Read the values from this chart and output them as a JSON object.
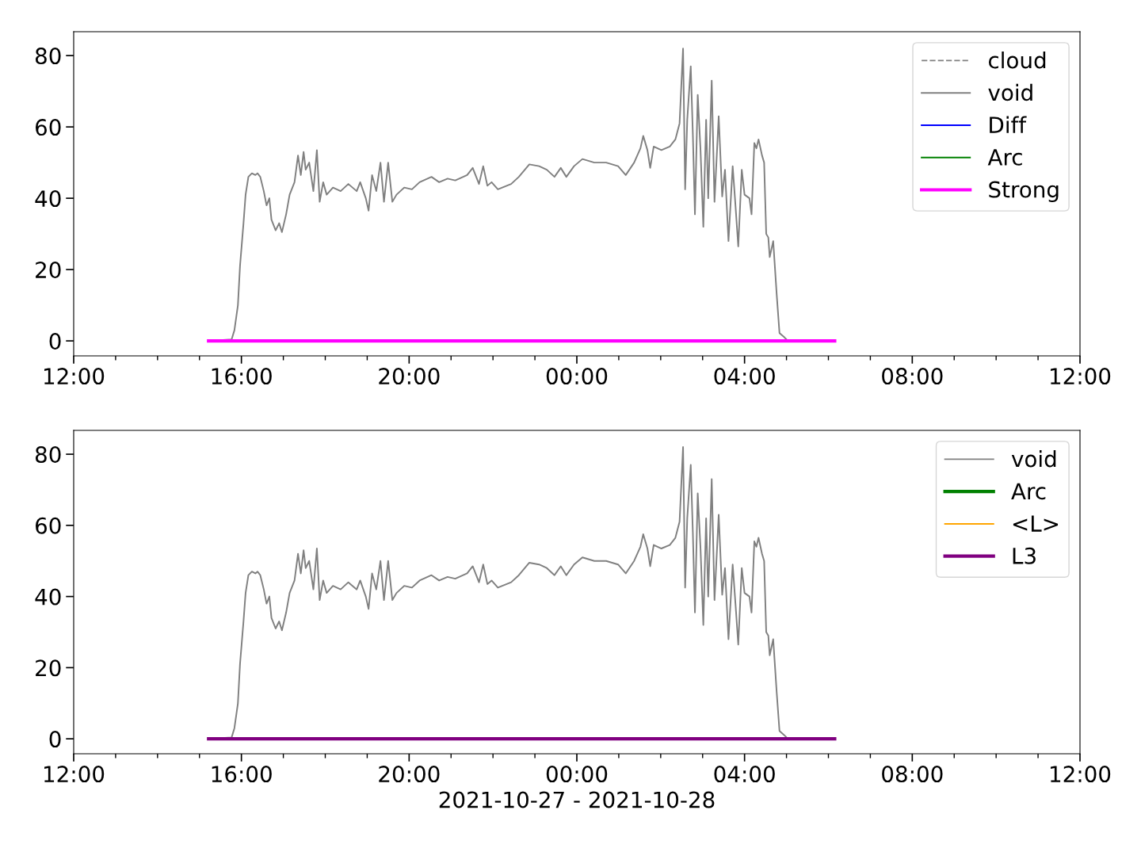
{
  "chart_data": [
    {
      "type": "line",
      "xlim": [
        "2021-10-27T12:00",
        "2021-10-28T12:00"
      ],
      "ylim": [
        -4.2,
        86.7
      ],
      "yticks": [
        0,
        20,
        40,
        60,
        80
      ],
      "xticks": [
        {
          "value": "2021-10-27T12:00",
          "label": "12:00"
        },
        {
          "value": "2021-10-27T13:00",
          "label": null
        },
        {
          "value": "2021-10-27T14:00",
          "label": null
        },
        {
          "value": "2021-10-27T15:00",
          "label": null
        },
        {
          "value": "2021-10-27T16:00",
          "label": "16:00"
        },
        {
          "value": "2021-10-27T17:00",
          "label": null
        },
        {
          "value": "2021-10-27T18:00",
          "label": null
        },
        {
          "value": "2021-10-27T19:00",
          "label": null
        },
        {
          "value": "2021-10-27T20:00",
          "label": "20:00"
        },
        {
          "value": "2021-10-27T21:00",
          "label": null
        },
        {
          "value": "2021-10-27T22:00",
          "label": null
        },
        {
          "value": "2021-10-27T23:00",
          "label": null
        },
        {
          "value": "2021-10-28T00:00",
          "label": "00:00"
        },
        {
          "value": "2021-10-28T01:00",
          "label": null
        },
        {
          "value": "2021-10-28T02:00",
          "label": null
        },
        {
          "value": "2021-10-28T03:00",
          "label": null
        },
        {
          "value": "2021-10-28T04:00",
          "label": "04:00"
        },
        {
          "value": "2021-10-28T05:00",
          "label": null
        },
        {
          "value": "2021-10-28T06:00",
          "label": null
        },
        {
          "value": "2021-10-28T07:00",
          "label": null
        },
        {
          "value": "2021-10-28T08:00",
          "label": "08:00"
        },
        {
          "value": "2021-10-28T09:00",
          "label": null
        },
        {
          "value": "2021-10-28T10:00",
          "label": null
        },
        {
          "value": "2021-10-28T11:00",
          "label": null
        },
        {
          "value": "2021-10-28T12:00",
          "label": "12:00"
        }
      ],
      "grid": false,
      "legend": "top right",
      "series": [
        {
          "name": "cloud",
          "color": "#808080",
          "line_style": "dashed"
        },
        {
          "name": "void",
          "color": "#808080",
          "line_style": "solid",
          "x": [
            "2021-10-27T15:13",
            "2021-10-27T15:46",
            "2021-10-27T15:50",
            "2021-10-27T15:55",
            "2021-10-27T15:58",
            "2021-10-27T16:03",
            "2021-10-27T16:06",
            "2021-10-27T16:10",
            "2021-10-27T16:15",
            "2021-10-27T16:20",
            "2021-10-27T16:23",
            "2021-10-27T16:27",
            "2021-10-27T16:32",
            "2021-10-27T16:36",
            "2021-10-27T16:40",
            "2021-10-27T16:43",
            "2021-10-27T16:49",
            "2021-10-27T16:54",
            "2021-10-27T16:58",
            "2021-10-27T17:04",
            "2021-10-27T17:09",
            "2021-10-27T17:16",
            "2021-10-27T17:21",
            "2021-10-27T17:25",
            "2021-10-27T17:29",
            "2021-10-27T17:32",
            "2021-10-27T17:37",
            "2021-10-27T17:43",
            "2021-10-27T17:48",
            "2021-10-27T17:52",
            "2021-10-27T17:57",
            "2021-10-27T18:02",
            "2021-10-27T18:11",
            "2021-10-27T18:22",
            "2021-10-27T18:33",
            "2021-10-27T18:45",
            "2021-10-27T18:50",
            "2021-10-27T18:58",
            "2021-10-27T19:02",
            "2021-10-27T19:07",
            "2021-10-27T19:13",
            "2021-10-27T19:19",
            "2021-10-27T19:24",
            "2021-10-27T19:30",
            "2021-10-27T19:36",
            "2021-10-27T19:42",
            "2021-10-27T19:53",
            "2021-10-27T20:04",
            "2021-10-27T20:15",
            "2021-10-27T20:32",
            "2021-10-27T20:43",
            "2021-10-27T20:55",
            "2021-10-27T21:06",
            "2021-10-27T21:23",
            "2021-10-27T21:31",
            "2021-10-27T21:40",
            "2021-10-27T21:46",
            "2021-10-27T21:52",
            "2021-10-27T21:58",
            "2021-10-27T22:07",
            "2021-10-27T22:26",
            "2021-10-27T22:37",
            "2021-10-27T22:52",
            "2021-10-27T23:06",
            "2021-10-27T23:17",
            "2021-10-27T23:28",
            "2021-10-27T23:37",
            "2021-10-27T23:45",
            "2021-10-27T23:56",
            "2021-10-28T00:08",
            "2021-10-28T00:25",
            "2021-10-28T00:42",
            "2021-10-28T00:59",
            "2021-10-28T01:10",
            "2021-10-28T01:22",
            "2021-10-28T01:31",
            "2021-10-28T01:35",
            "2021-10-28T01:41",
            "2021-10-28T01:45",
            "2021-10-28T01:50",
            "2021-10-28T02:01",
            "2021-10-28T02:13",
            "2021-10-28T02:21",
            "2021-10-28T02:27",
            "2021-10-28T02:32",
            "2021-10-28T02:35",
            "2021-10-28T02:38",
            "2021-10-28T02:43",
            "2021-10-28T02:46",
            "2021-10-28T02:49",
            "2021-10-28T02:53",
            "2021-10-28T02:57",
            "2021-10-28T03:01",
            "2021-10-28T03:05",
            "2021-10-28T03:08",
            "2021-10-28T03:13",
            "2021-10-28T03:17",
            "2021-10-28T03:23",
            "2021-10-28T03:28",
            "2021-10-28T03:32",
            "2021-10-28T03:37",
            "2021-10-28T03:43",
            "2021-10-28T03:47",
            "2021-10-28T03:51",
            "2021-10-28T03:56",
            "2021-10-28T04:00",
            "2021-10-28T04:07",
            "2021-10-28T04:10",
            "2021-10-28T04:14",
            "2021-10-28T04:17",
            "2021-10-28T04:20",
            "2021-10-28T04:25",
            "2021-10-28T04:28",
            "2021-10-28T04:31",
            "2021-10-28T04:34",
            "2021-10-28T04:36",
            "2021-10-28T04:41",
            "2021-10-28T04:43",
            "2021-10-28T04:46",
            "2021-10-28T04:50",
            "2021-10-28T04:57",
            "2021-10-28T05:02"
          ],
          "values": [
            0,
            0.4,
            3,
            10,
            21,
            33,
            41,
            46,
            47,
            46.5,
            47,
            46,
            42,
            38,
            40,
            34,
            31,
            33,
            30.5,
            35.5,
            41,
            44.5,
            52,
            46.5,
            53,
            48,
            50,
            42,
            53.5,
            39,
            44.5,
            41,
            43,
            42,
            44,
            42,
            44.5,
            40,
            36.5,
            46.5,
            42,
            50,
            39,
            50,
            39,
            41,
            43,
            42.5,
            44.5,
            46,
            44.5,
            45.5,
            45,
            46.5,
            48.5,
            44,
            49,
            43.5,
            44.5,
            42.5,
            44,
            46,
            49.5,
            49,
            48,
            46,
            48.5,
            46,
            49,
            51,
            50,
            50,
            49,
            46.5,
            50,
            54,
            57.5,
            53.5,
            48.5,
            54.5,
            53.5,
            54.5,
            56.5,
            61,
            82,
            42.5,
            62,
            77,
            58,
            35.5,
            69,
            53.5,
            32,
            62,
            40,
            73,
            39,
            63,
            40.5,
            48,
            28,
            49,
            38,
            26.5,
            48,
            41,
            40,
            35.5,
            55.5,
            54,
            56.5,
            52,
            50,
            30,
            29,
            23.5,
            28,
            22,
            13,
            2.2,
            1,
            0
          ]
        },
        {
          "name": "Diff",
          "color": "#0000ff",
          "line_style": "solid"
        },
        {
          "name": "Arc",
          "color": "#008000",
          "line_style": "solid"
        },
        {
          "name": "Strong",
          "color": "#ff00ff",
          "line_style": "solid",
          "x": [
            "2021-10-27T15:13",
            "2021-10-28T06:09"
          ],
          "values": [
            0,
            0
          ]
        }
      ]
    },
    {
      "type": "line",
      "xlabel": "2021-10-27 - 2021-10-28",
      "xlim": [
        "2021-10-27T12:00",
        "2021-10-28T12:00"
      ],
      "ylim": [
        -4.2,
        86.7
      ],
      "yticks": [
        0,
        20,
        40,
        60,
        80
      ],
      "xticks": [
        {
          "value": "2021-10-27T12:00",
          "label": "12:00"
        },
        {
          "value": "2021-10-27T13:00",
          "label": null
        },
        {
          "value": "2021-10-27T14:00",
          "label": null
        },
        {
          "value": "2021-10-27T15:00",
          "label": null
        },
        {
          "value": "2021-10-27T16:00",
          "label": "16:00"
        },
        {
          "value": "2021-10-27T17:00",
          "label": null
        },
        {
          "value": "2021-10-27T18:00",
          "label": null
        },
        {
          "value": "2021-10-27T19:00",
          "label": null
        },
        {
          "value": "2021-10-27T20:00",
          "label": "20:00"
        },
        {
          "value": "2021-10-27T21:00",
          "label": null
        },
        {
          "value": "2021-10-27T22:00",
          "label": null
        },
        {
          "value": "2021-10-27T23:00",
          "label": null
        },
        {
          "value": "2021-10-28T00:00",
          "label": "00:00"
        },
        {
          "value": "2021-10-28T01:00",
          "label": null
        },
        {
          "value": "2021-10-28T02:00",
          "label": null
        },
        {
          "value": "2021-10-28T03:00",
          "label": null
        },
        {
          "value": "2021-10-28T04:00",
          "label": "04:00"
        },
        {
          "value": "2021-10-28T05:00",
          "label": null
        },
        {
          "value": "2021-10-28T06:00",
          "label": null
        },
        {
          "value": "2021-10-28T07:00",
          "label": null
        },
        {
          "value": "2021-10-28T08:00",
          "label": "08:00"
        },
        {
          "value": "2021-10-28T09:00",
          "label": null
        },
        {
          "value": "2021-10-28T10:00",
          "label": null
        },
        {
          "value": "2021-10-28T11:00",
          "label": null
        },
        {
          "value": "2021-10-28T12:00",
          "label": "12:00"
        }
      ],
      "grid": false,
      "legend": "top right",
      "series": [
        {
          "name": "void",
          "color": "#808080",
          "line_style": "solid",
          "x": [
            "2021-10-27T15:13",
            "2021-10-27T15:46",
            "2021-10-27T15:50",
            "2021-10-27T15:55",
            "2021-10-27T15:58",
            "2021-10-27T16:03",
            "2021-10-27T16:06",
            "2021-10-27T16:10",
            "2021-10-27T16:15",
            "2021-10-27T16:20",
            "2021-10-27T16:23",
            "2021-10-27T16:27",
            "2021-10-27T16:32",
            "2021-10-27T16:36",
            "2021-10-27T16:40",
            "2021-10-27T16:43",
            "2021-10-27T16:49",
            "2021-10-27T16:54",
            "2021-10-27T16:58",
            "2021-10-27T17:04",
            "2021-10-27T17:09",
            "2021-10-27T17:16",
            "2021-10-27T17:21",
            "2021-10-27T17:25",
            "2021-10-27T17:29",
            "2021-10-27T17:32",
            "2021-10-27T17:37",
            "2021-10-27T17:43",
            "2021-10-27T17:48",
            "2021-10-27T17:52",
            "2021-10-27T17:57",
            "2021-10-27T18:02",
            "2021-10-27T18:11",
            "2021-10-27T18:22",
            "2021-10-27T18:33",
            "2021-10-27T18:45",
            "2021-10-27T18:50",
            "2021-10-27T18:58",
            "2021-10-27T19:02",
            "2021-10-27T19:07",
            "2021-10-27T19:13",
            "2021-10-27T19:19",
            "2021-10-27T19:24",
            "2021-10-27T19:30",
            "2021-10-27T19:36",
            "2021-10-27T19:42",
            "2021-10-27T19:53",
            "2021-10-27T20:04",
            "2021-10-27T20:15",
            "2021-10-27T20:32",
            "2021-10-27T20:43",
            "2021-10-27T20:55",
            "2021-10-27T21:06",
            "2021-10-27T21:23",
            "2021-10-27T21:31",
            "2021-10-27T21:40",
            "2021-10-27T21:46",
            "2021-10-27T21:52",
            "2021-10-27T21:58",
            "2021-10-27T22:07",
            "2021-10-27T22:26",
            "2021-10-27T22:37",
            "2021-10-27T22:52",
            "2021-10-27T23:06",
            "2021-10-27T23:17",
            "2021-10-27T23:28",
            "2021-10-27T23:37",
            "2021-10-27T23:45",
            "2021-10-27T23:56",
            "2021-10-28T00:08",
            "2021-10-28T00:25",
            "2021-10-28T00:42",
            "2021-10-28T00:59",
            "2021-10-28T01:10",
            "2021-10-28T01:22",
            "2021-10-28T01:31",
            "2021-10-28T01:35",
            "2021-10-28T01:41",
            "2021-10-28T01:45",
            "2021-10-28T01:50",
            "2021-10-28T02:01",
            "2021-10-28T02:13",
            "2021-10-28T02:21",
            "2021-10-28T02:27",
            "2021-10-28T02:32",
            "2021-10-28T02:35",
            "2021-10-28T02:38",
            "2021-10-28T02:43",
            "2021-10-28T02:46",
            "2021-10-28T02:49",
            "2021-10-28T02:53",
            "2021-10-28T02:57",
            "2021-10-28T03:01",
            "2021-10-28T03:05",
            "2021-10-28T03:08",
            "2021-10-28T03:13",
            "2021-10-28T03:17",
            "2021-10-28T03:23",
            "2021-10-28T03:28",
            "2021-10-28T03:32",
            "2021-10-28T03:37",
            "2021-10-28T03:43",
            "2021-10-28T03:47",
            "2021-10-28T03:51",
            "2021-10-28T03:56",
            "2021-10-28T04:00",
            "2021-10-28T04:07",
            "2021-10-28T04:10",
            "2021-10-28T04:14",
            "2021-10-28T04:17",
            "2021-10-28T04:20",
            "2021-10-28T04:25",
            "2021-10-28T04:28",
            "2021-10-28T04:31",
            "2021-10-28T04:34",
            "2021-10-28T04:36",
            "2021-10-28T04:41",
            "2021-10-28T04:43",
            "2021-10-28T04:46",
            "2021-10-28T04:50",
            "2021-10-28T04:57",
            "2021-10-28T05:02"
          ],
          "values": [
            0,
            0.4,
            3,
            10,
            21,
            33,
            41,
            46,
            47,
            46.5,
            47,
            46,
            42,
            38,
            40,
            34,
            31,
            33,
            30.5,
            35.5,
            41,
            44.5,
            52,
            46.5,
            53,
            48,
            50,
            42,
            53.5,
            39,
            44.5,
            41,
            43,
            42,
            44,
            42,
            44.5,
            40,
            36.5,
            46.5,
            42,
            50,
            39,
            50,
            39,
            41,
            43,
            42.5,
            44.5,
            46,
            44.5,
            45.5,
            45,
            46.5,
            48.5,
            44,
            49,
            43.5,
            44.5,
            42.5,
            44,
            46,
            49.5,
            49,
            48,
            46,
            48.5,
            46,
            49,
            51,
            50,
            50,
            49,
            46.5,
            50,
            54,
            57.5,
            53.5,
            48.5,
            54.5,
            53.5,
            54.5,
            56.5,
            61,
            82,
            42.5,
            62,
            77,
            58,
            35.5,
            69,
            53.5,
            32,
            62,
            40,
            73,
            39,
            63,
            40.5,
            48,
            28,
            49,
            38,
            26.5,
            48,
            41,
            40,
            35.5,
            55.5,
            54,
            56.5,
            52,
            50,
            30,
            29,
            23.5,
            28,
            22,
            13,
            2.2,
            1,
            0
          ]
        },
        {
          "name": "Arc",
          "color": "#008000",
          "line_style": "solid"
        },
        {
          "name": "<L>",
          "color": "#ffa500",
          "line_style": "solid"
        },
        {
          "name": "L3",
          "color": "#800080",
          "line_style": "solid",
          "x": [
            "2021-10-27T15:13",
            "2021-10-28T06:09"
          ],
          "values": [
            0,
            0
          ]
        }
      ]
    }
  ]
}
